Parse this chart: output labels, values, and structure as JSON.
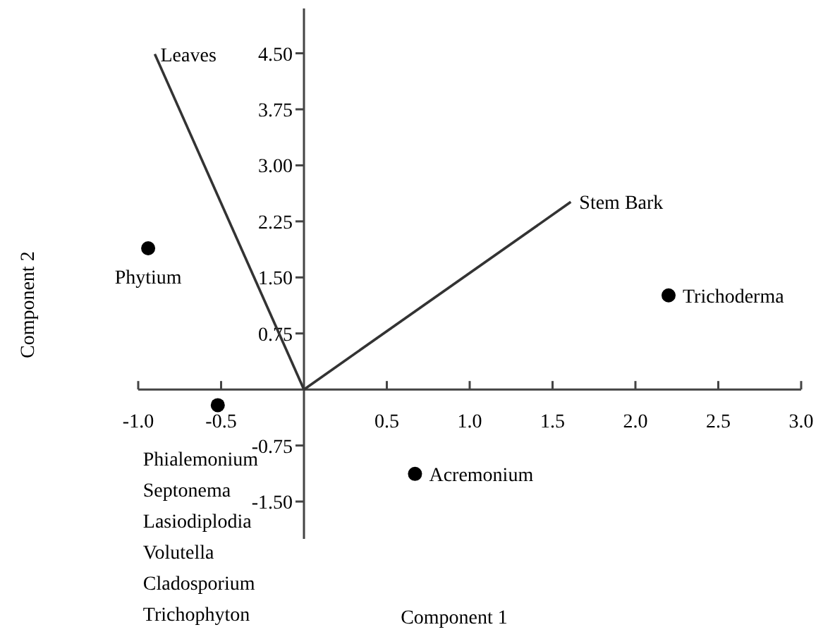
{
  "chart_data": {
    "type": "scatter",
    "xlabel": "Component 1",
    "ylabel": "Component 2",
    "xlim": [
      -1.0,
      3.0
    ],
    "ylim": [
      -2.0,
      5.1
    ],
    "xticks": [
      {
        "value": -1,
        "label": "-1.0"
      },
      {
        "value": -0.5,
        "label": "-0.5"
      },
      0.5,
      {
        "value": 1,
        "label": "1.0"
      },
      1.5,
      {
        "value": 2,
        "label": "2.0"
      },
      2.5,
      {
        "value": 3,
        "label": "3.0"
      }
    ],
    "yticks": [
      {
        "value": -1.5,
        "label": "-1.50"
      },
      -0.75,
      0.75,
      {
        "value": 1.5,
        "label": "1.50"
      },
      2.25,
      {
        "value": 3,
        "label": "3.00"
      },
      3.75,
      {
        "value": 4.5,
        "label": "4.50"
      }
    ],
    "grid": false,
    "series": [
      {
        "marker": "circle",
        "color": "#000000",
        "x": [
          -0.94,
          -0.52,
          2.2,
          0.67
        ],
        "values": [
          1.89,
          -0.21,
          1.26,
          -1.13
        ]
      },
      {
        "type": "line",
        "name": "Leaves",
        "color": "#333333",
        "x": [
          0,
          -0.9
        ],
        "values": [
          0,
          4.49
        ]
      },
      {
        "type": "line",
        "name": "Stem Bark",
        "color": "#333333",
        "x": [
          0,
          1.61
        ],
        "values": [
          0,
          2.51
        ]
      }
    ],
    "annotations": [
      {
        "text": "Phytium",
        "x": -0.94,
        "y": 1.89
      },
      {
        "text": "Trichoderma",
        "x": 2.2,
        "y": 1.26
      },
      {
        "text": "Acremonium",
        "x": 0.67,
        "y": -1.13
      },
      {
        "text": "Phialemonium",
        "x": -0.52,
        "y": -0.21
      },
      "Septonema",
      "Lasiodiplodia",
      "Volutella",
      "Cladosporium",
      "Trichophyton"
    ]
  }
}
